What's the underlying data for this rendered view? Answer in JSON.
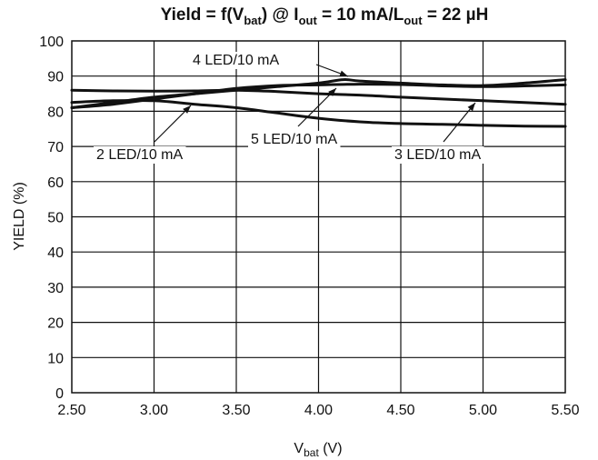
{
  "chart_data": {
    "type": "line",
    "title": {
      "main": "Yield = f(V",
      "sub1": "bat",
      "mid1": ") @ I",
      "sub2": "out",
      "mid2": " = 10 mA/L",
      "sub3": "out",
      "end": " = 22 µH"
    },
    "xlabel": {
      "main": "V",
      "sub": "bat",
      "end": " (V)"
    },
    "ylabel": "YIELD (%)",
    "xlim": [
      2.5,
      5.5
    ],
    "ylim": [
      0,
      100
    ],
    "x_ticks": [
      2.5,
      3.0,
      3.5,
      4.0,
      4.5,
      5.0,
      5.5
    ],
    "x_tick_labels": [
      "2.50",
      "3.00",
      "3.50",
      "4.00",
      "4.50",
      "5.00",
      "5.50"
    ],
    "y_ticks": [
      0,
      10,
      20,
      30,
      40,
      50,
      60,
      70,
      80,
      90,
      100
    ],
    "y_tick_labels": [
      "0",
      "10",
      "20",
      "30",
      "40",
      "50",
      "60",
      "70",
      "80",
      "90",
      "100"
    ],
    "grid": true,
    "series": [
      {
        "name": "2 LED/10 mA",
        "x": [
          2.5,
          2.75,
          3.0,
          3.25,
          3.5,
          3.75,
          4.0,
          4.25,
          4.5,
          4.75,
          5.0,
          5.25,
          5.5
        ],
        "y": [
          82.5,
          83.0,
          83.0,
          82.0,
          81.0,
          79.5,
          78.0,
          77.0,
          76.5,
          76.3,
          76.0,
          75.8,
          75.7
        ]
      },
      {
        "name": "3 LED/10 mA",
        "x": [
          2.5,
          2.75,
          3.0,
          3.25,
          3.5,
          3.75,
          4.0,
          4.25,
          4.5,
          4.75,
          5.0,
          5.25,
          5.5
        ],
        "y": [
          86.0,
          85.8,
          85.7,
          85.8,
          86.0,
          85.6,
          85.0,
          84.6,
          84.0,
          83.5,
          83.0,
          82.5,
          82.0
        ]
      },
      {
        "name": "4 LED/10 mA",
        "x": [
          2.5,
          2.75,
          3.0,
          3.25,
          3.5,
          3.75,
          4.0,
          4.15,
          4.25,
          4.5,
          4.75,
          5.0,
          5.25,
          5.5
        ],
        "y": [
          81.0,
          82.5,
          84.0,
          85.0,
          86.0,
          87.0,
          88.0,
          89.0,
          88.6,
          88.0,
          87.5,
          87.3,
          88.0,
          89.0
        ]
      },
      {
        "name": "5 LED/10 mA",
        "x": [
          2.5,
          2.75,
          3.0,
          3.25,
          3.5,
          3.75,
          4.0,
          4.25,
          4.5,
          4.75,
          5.0,
          5.25,
          5.5
        ],
        "y": [
          81.0,
          82.0,
          83.5,
          85.0,
          86.5,
          87.3,
          87.5,
          87.7,
          87.6,
          87.2,
          87.0,
          87.2,
          87.5
        ]
      }
    ],
    "annotations": [
      {
        "text": "4 LED/10 mA",
        "series": "4 LED/10 mA",
        "x": 4.15,
        "y": 89.0
      },
      {
        "text": "2 LED/10 mA",
        "series": "2 LED/10 mA",
        "x": 3.2,
        "y": 82.5
      },
      {
        "text": "5 LED/10 mA",
        "series": "5 LED/10 mA",
        "x": 4.2,
        "y": 87.8
      },
      {
        "text": "3 LED/10 mA",
        "series": "3 LED/10 mA",
        "x": 5.1,
        "y": 83.0
      }
    ],
    "colors": {
      "line": "#111111",
      "grid": "#111111",
      "background": "#ffffff"
    }
  }
}
